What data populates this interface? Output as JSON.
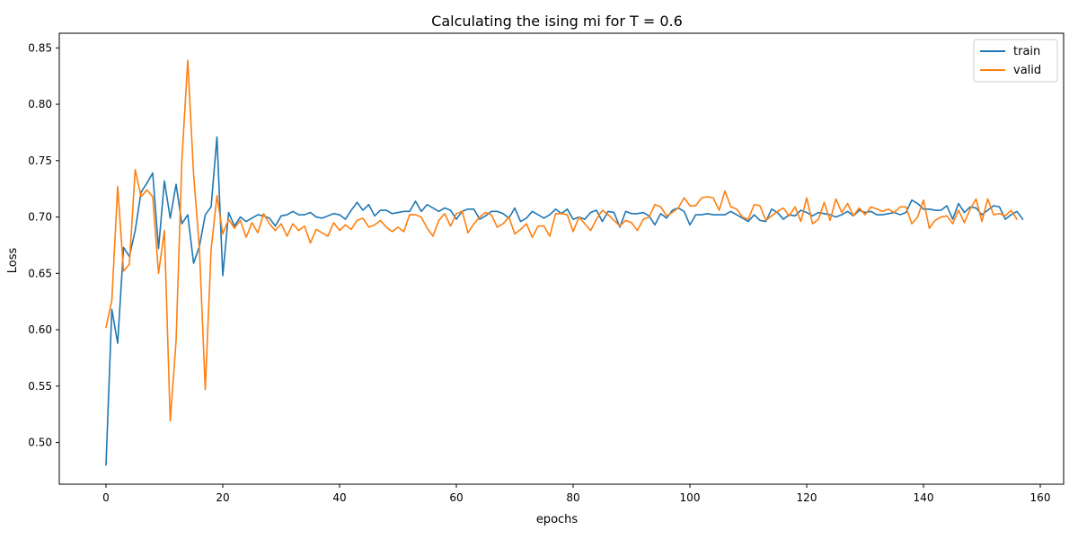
{
  "chart_data": {
    "type": "line",
    "title": "Calculating the ising mi for T = 0.6",
    "xlabel": "epochs",
    "ylabel": "Loss",
    "xlim": [
      -8,
      164
    ],
    "ylim": [
      0.463,
      0.863
    ],
    "xticks": [
      0,
      20,
      40,
      60,
      80,
      100,
      120,
      140,
      160
    ],
    "xtick_labels": [
      "0",
      "20",
      "40",
      "60",
      "80",
      "100",
      "120",
      "140",
      "160"
    ],
    "yticks": [
      0.5,
      0.55,
      0.6,
      0.65,
      0.7,
      0.75,
      0.8,
      0.85
    ],
    "ytick_labels": [
      "0.50",
      "0.55",
      "0.60",
      "0.65",
      "0.70",
      "0.75",
      "0.80",
      "0.85"
    ],
    "grid": false,
    "legend_position": "top-right",
    "series": [
      {
        "name": "train",
        "color": "#1f77b4",
        "values": [
          0.48,
          0.618,
          0.588,
          0.673,
          0.665,
          0.688,
          0.722,
          0.73,
          0.739,
          0.672,
          0.732,
          0.699,
          0.729,
          0.694,
          0.702,
          0.659,
          0.674,
          0.702,
          0.709,
          0.771,
          0.648,
          0.704,
          0.692,
          0.7,
          0.696,
          0.699,
          0.702,
          0.701,
          0.699,
          0.692,
          0.701,
          0.702,
          0.705,
          0.702,
          0.702,
          0.704,
          0.7,
          0.699,
          0.701,
          0.703,
          0.702,
          0.698,
          0.706,
          0.713,
          0.706,
          0.711,
          0.701,
          0.706,
          0.706,
          0.703,
          0.704,
          0.705,
          0.705,
          0.714,
          0.705,
          0.711,
          0.708,
          0.705,
          0.708,
          0.706,
          0.698,
          0.705,
          0.707,
          0.707,
          0.698,
          0.701,
          0.705,
          0.705,
          0.703,
          0.699,
          0.708,
          0.696,
          0.699,
          0.705,
          0.702,
          0.699,
          0.702,
          0.707,
          0.703,
          0.707,
          0.698,
          0.7,
          0.698,
          0.704,
          0.706,
          0.696,
          0.705,
          0.704,
          0.691,
          0.705,
          0.703,
          0.703,
          0.704,
          0.701,
          0.693,
          0.703,
          0.699,
          0.706,
          0.708,
          0.705,
          0.693,
          0.702,
          0.702,
          0.703,
          0.702,
          0.702,
          0.702,
          0.705,
          0.702,
          0.699,
          0.696,
          0.702,
          0.697,
          0.696,
          0.707,
          0.704,
          0.698,
          0.702,
          0.701,
          0.706,
          0.704,
          0.701,
          0.704,
          0.703,
          0.702,
          0.7,
          0.702,
          0.705,
          0.701,
          0.706,
          0.704,
          0.705,
          0.702,
          0.702,
          0.703,
          0.704,
          0.702,
          0.704,
          0.715,
          0.712,
          0.707,
          0.707,
          0.706,
          0.706,
          0.71,
          0.698,
          0.712,
          0.704,
          0.709,
          0.708,
          0.702,
          0.706,
          0.71,
          0.709,
          0.698,
          0.702,
          0.705,
          0.698
        ]
      },
      {
        "name": "valid",
        "color": "#ff7f0e",
        "values": [
          0.602,
          0.626,
          0.727,
          0.652,
          0.658,
          0.742,
          0.718,
          0.724,
          0.718,
          0.65,
          0.688,
          0.519,
          0.59,
          0.751,
          0.839,
          0.738,
          0.672,
          0.547,
          0.671,
          0.719,
          0.685,
          0.698,
          0.69,
          0.697,
          0.682,
          0.695,
          0.686,
          0.703,
          0.694,
          0.688,
          0.694,
          0.683,
          0.694,
          0.688,
          0.692,
          0.677,
          0.689,
          0.686,
          0.683,
          0.695,
          0.688,
          0.693,
          0.689,
          0.697,
          0.699,
          0.691,
          0.693,
          0.697,
          0.691,
          0.687,
          0.691,
          0.687,
          0.702,
          0.702,
          0.7,
          0.69,
          0.683,
          0.697,
          0.703,
          0.692,
          0.703,
          0.705,
          0.686,
          0.694,
          0.7,
          0.704,
          0.702,
          0.691,
          0.694,
          0.7,
          0.685,
          0.689,
          0.694,
          0.682,
          0.692,
          0.692,
          0.683,
          0.703,
          0.703,
          0.702,
          0.687,
          0.7,
          0.694,
          0.688,
          0.698,
          0.706,
          0.702,
          0.697,
          0.692,
          0.697,
          0.695,
          0.688,
          0.698,
          0.7,
          0.711,
          0.709,
          0.701,
          0.704,
          0.708,
          0.717,
          0.71,
          0.71,
          0.717,
          0.718,
          0.717,
          0.706,
          0.723,
          0.709,
          0.707,
          0.7,
          0.698,
          0.711,
          0.71,
          0.697,
          0.701,
          0.705,
          0.708,
          0.701,
          0.709,
          0.696,
          0.717,
          0.694,
          0.698,
          0.713,
          0.697,
          0.716,
          0.704,
          0.712,
          0.701,
          0.708,
          0.702,
          0.709,
          0.707,
          0.705,
          0.707,
          0.704,
          0.709,
          0.709,
          0.694,
          0.7,
          0.715,
          0.69,
          0.697,
          0.7,
          0.701,
          0.694,
          0.706,
          0.695,
          0.707,
          0.716,
          0.696,
          0.716,
          0.702,
          0.703,
          0.701,
          0.706,
          0.698
        ]
      }
    ]
  }
}
